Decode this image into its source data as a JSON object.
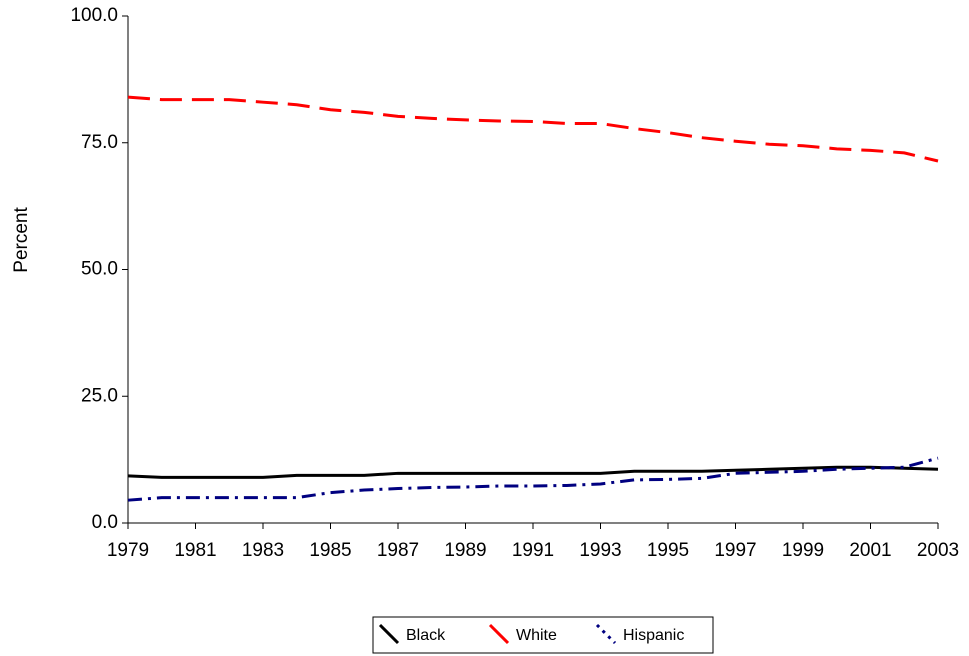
{
  "chart_data": {
    "type": "line",
    "y_label": "Percent",
    "x": [
      1979,
      1980,
      1981,
      1982,
      1983,
      1984,
      1985,
      1986,
      1987,
      1988,
      1989,
      1990,
      1991,
      1992,
      1993,
      1994,
      1995,
      1996,
      1997,
      1998,
      1999,
      2000,
      2001,
      2002,
      2003
    ],
    "xlim": [
      1979,
      2003
    ],
    "xticks": [
      1979,
      1981,
      1983,
      1985,
      1987,
      1989,
      1991,
      1993,
      1995,
      1997,
      1999,
      2001,
      2003
    ],
    "ylim": [
      0,
      100
    ],
    "yticks": [
      {
        "value": 0,
        "label": "0.0"
      },
      {
        "value": 25,
        "label": "25.0"
      },
      {
        "value": 50,
        "label": "50.0"
      },
      {
        "value": 75,
        "label": "75.0"
      },
      {
        "value": 100,
        "label": "100.0"
      }
    ],
    "grid": false,
    "legend": "bottom",
    "series": [
      {
        "name": "Black",
        "color": "#000000",
        "dash": "solid",
        "values": [
          9.3,
          9.0,
          9.0,
          9.0,
          9.0,
          9.4,
          9.4,
          9.4,
          9.8,
          9.8,
          9.8,
          9.8,
          9.8,
          9.8,
          9.8,
          10.2,
          10.2,
          10.2,
          10.4,
          10.6,
          10.8,
          11.0,
          11.0,
          10.8,
          10.6
        ]
      },
      {
        "name": "White",
        "color": "#ff0000",
        "dash": "dashed",
        "values": [
          84.0,
          83.5,
          83.5,
          83.5,
          83.0,
          82.5,
          81.5,
          81.0,
          80.2,
          79.8,
          79.5,
          79.3,
          79.2,
          78.8,
          78.8,
          77.8,
          77.0,
          76.0,
          75.3,
          74.7,
          74.4,
          73.8,
          73.5,
          73.0,
          71.4
        ]
      },
      {
        "name": "Hispanic",
        "color": "#000080",
        "dash": "dashdot",
        "values": [
          4.5,
          5.0,
          5.0,
          5.0,
          5.0,
          5.0,
          6.0,
          6.5,
          6.8,
          7.0,
          7.1,
          7.3,
          7.3,
          7.4,
          7.7,
          8.5,
          8.6,
          8.8,
          9.8,
          10.0,
          10.2,
          10.6,
          10.8,
          11.0,
          12.8
        ]
      }
    ]
  }
}
